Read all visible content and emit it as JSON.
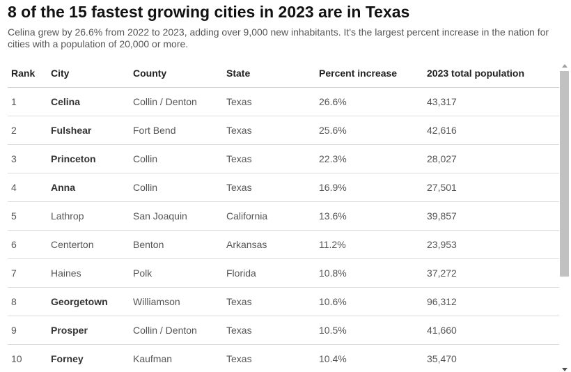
{
  "header": {
    "title": "8 of the 15 fastest growing cities in 2023 are in Texas",
    "subtitle": "Celina grew by 26.6% from 2022 to 2023, adding over 9,000 new inhabitants. It's the largest percent increase in the nation for cities with a population of 20,000 or more."
  },
  "chart_data": {
    "type": "table",
    "columns": [
      "Rank",
      "City",
      "County",
      "State",
      "Percent increase",
      "2023 total population"
    ],
    "rows": [
      {
        "rank": "1",
        "city": "Celina",
        "county": "Collin / Denton",
        "state": "Texas",
        "pct": "26.6%",
        "pop": "43,317",
        "bold": true
      },
      {
        "rank": "2",
        "city": "Fulshear",
        "county": "Fort Bend",
        "state": "Texas",
        "pct": "25.6%",
        "pop": "42,616",
        "bold": true
      },
      {
        "rank": "3",
        "city": "Princeton",
        "county": "Collin",
        "state": "Texas",
        "pct": "22.3%",
        "pop": "28,027",
        "bold": true
      },
      {
        "rank": "4",
        "city": "Anna",
        "county": "Collin",
        "state": "Texas",
        "pct": "16.9%",
        "pop": "27,501",
        "bold": true
      },
      {
        "rank": "5",
        "city": "Lathrop",
        "county": "San Joaquin",
        "state": "California",
        "pct": "13.6%",
        "pop": "39,857",
        "bold": false
      },
      {
        "rank": "6",
        "city": "Centerton",
        "county": "Benton",
        "state": "Arkansas",
        "pct": "11.2%",
        "pop": "23,953",
        "bold": false
      },
      {
        "rank": "7",
        "city": "Haines",
        "county": "Polk",
        "state": "Florida",
        "pct": "10.8%",
        "pop": "37,272",
        "bold": false
      },
      {
        "rank": "8",
        "city": "Georgetown",
        "county": "Williamson",
        "state": "Texas",
        "pct": "10.6%",
        "pop": "96,312",
        "bold": true
      },
      {
        "rank": "9",
        "city": "Prosper",
        "county": "Collin / Denton",
        "state": "Texas",
        "pct": "10.5%",
        "pop": "41,660",
        "bold": true
      },
      {
        "rank": "10",
        "city": "Forney",
        "county": "Kaufman",
        "state": "Texas",
        "pct": "10.4%",
        "pop": "35,470",
        "bold": true
      }
    ]
  },
  "scrollbar": {
    "up_icon": "chevron-up-icon",
    "down_icon": "chevron-down-icon"
  }
}
